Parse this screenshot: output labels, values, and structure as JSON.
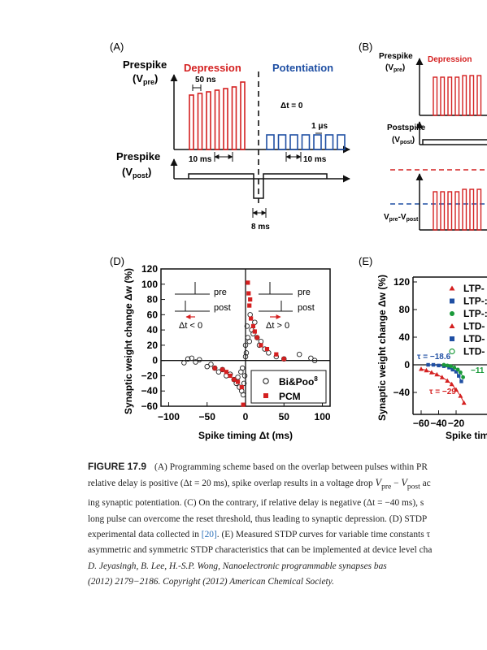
{
  "panels": {
    "A": {
      "label": "(A)",
      "pre_title_1": "Prespike",
      "pre_title_2": "(V",
      "pre_sub": "pre",
      "depression": "Depression",
      "potentiation": "Potentiation",
      "t_50ns": "50 ns",
      "dt_zero": "Δt = 0",
      "t_1us": "1 μs",
      "t_10ms_left": "10 ms",
      "t_10ms_right": "10 ms",
      "post_title_1": "Prespike",
      "post_title_2": "(V",
      "post_sub": "post",
      "t_8ms": "8 ms"
    },
    "B": {
      "label": "(B)",
      "prespike": "Prespike",
      "pre_paren": "(V",
      "pre_sub": "pre",
      "depression": "Depression",
      "postspike": "Postspike",
      "post_paren": "(V",
      "post_sub": "post",
      "vdiff_a": "V",
      "vdiff_sub_a": "pre",
      "vdiff_b": "-V",
      "vdiff_sub_b": "post"
    },
    "D": {
      "label": "(D)",
      "ylabel": "Synaptic weight change Δw (%)",
      "xlabel": "Spike timing Δt (ms)",
      "inset_pre_left": "pre",
      "inset_post_left": "post",
      "inset_dt_left": "Δt < 0",
      "inset_pre_right": "pre",
      "inset_post_right": "post",
      "inset_dt_right": "Δt > 0",
      "legend_bipoo": "Bi&Poo",
      "legend_bipoo_sup": "8",
      "legend_pcm": "PCM"
    },
    "E": {
      "label": "(E)",
      "ylabel": "Synaptic weight change Δw (%)",
      "xlabel": "Spike tim",
      "tau_blue": "τ = −18.6",
      "tau_green": "−11",
      "tau_red": "τ = −29",
      "legend": [
        "LTP-",
        "LTP-:",
        "LTP-:",
        "LTD-",
        "LTD-",
        "LTD-"
      ]
    }
  },
  "chart_data": [
    {
      "type": "scatter",
      "panel": "D",
      "xlabel": "Spike timing Δt (ms)",
      "ylabel": "Synaptic weight change Δw (%)",
      "xlim": [
        -110,
        110
      ],
      "ylim": [
        -60,
        120
      ],
      "xticks": [
        -100,
        -50,
        0,
        50,
        100
      ],
      "yticks": [
        -60,
        -40,
        -20,
        0,
        20,
        40,
        60,
        80,
        100,
        120
      ],
      "legend_position": "bottom-right",
      "series": [
        {
          "name": "Bi&Poo8",
          "marker": "open-circle",
          "points": [
            [
              -75,
              2
            ],
            [
              -70,
              3
            ],
            [
              -65,
              -2
            ],
            [
              -60,
              1
            ],
            [
              -80,
              -3
            ],
            [
              -50,
              -8
            ],
            [
              -45,
              -5
            ],
            [
              -40,
              -10
            ],
            [
              -35,
              -15
            ],
            [
              -30,
              -12
            ],
            [
              -25,
              -20
            ],
            [
              -20,
              -18
            ],
            [
              -15,
              -25
            ],
            [
              -12,
              -30
            ],
            [
              -10,
              -22
            ],
            [
              -8,
              -35
            ],
            [
              -6,
              -15
            ],
            [
              -5,
              -40
            ],
            [
              -4,
              -10
            ],
            [
              -3,
              -45
            ],
            [
              -2,
              -30
            ],
            [
              -1,
              -20
            ],
            [
              0,
              20
            ],
            [
              0,
              5
            ],
            [
              1,
              10
            ],
            [
              2,
              45
            ],
            [
              3,
              30
            ],
            [
              5,
              25
            ],
            [
              6,
              60
            ],
            [
              8,
              40
            ],
            [
              10,
              35
            ],
            [
              12,
              50
            ],
            [
              15,
              30
            ],
            [
              18,
              20
            ],
            [
              20,
              25
            ],
            [
              25,
              15
            ],
            [
              30,
              10
            ],
            [
              40,
              5
            ],
            [
              50,
              2
            ],
            [
              70,
              8
            ],
            [
              85,
              3
            ],
            [
              90,
              0
            ]
          ]
        },
        {
          "name": "PCM",
          "marker": "filled-square",
          "points": [
            [
              -40,
              -10
            ],
            [
              -30,
              -12
            ],
            [
              -25,
              -15
            ],
            [
              -20,
              -20
            ],
            [
              -15,
              -25
            ],
            [
              -10,
              -28
            ],
            [
              -5,
              -35
            ],
            [
              -3,
              -58
            ],
            [
              3,
              102
            ],
            [
              4,
              88
            ],
            [
              5,
              72
            ],
            [
              6,
              80
            ],
            [
              7,
              55
            ],
            [
              10,
              45
            ],
            [
              12,
              38
            ],
            [
              15,
              30
            ],
            [
              20,
              20
            ],
            [
              28,
              15
            ],
            [
              40,
              8
            ],
            [
              50,
              2
            ]
          ]
        }
      ]
    },
    {
      "type": "scatter",
      "panel": "E",
      "xlabel": "Spike tim",
      "ylabel": "Synaptic weight change Δw (%)",
      "xlim": [
        -70,
        -10
      ],
      "ylim": [
        -60,
        130
      ],
      "xticks": [
        -60,
        -40,
        -20
      ],
      "yticks": [
        -40,
        0,
        40,
        80,
        120
      ],
      "series": [
        {
          "name": "τ = −18.6",
          "color": "#1f4fa3",
          "marker": "filled-square",
          "points": [
            [
              -52,
              0
            ],
            [
              -46,
              0
            ],
            [
              -40,
              -1
            ],
            [
              -34,
              -2
            ],
            [
              -28,
              -4
            ],
            [
              -24,
              -7
            ],
            [
              -20,
              -10
            ],
            [
              -17,
              -16
            ],
            [
              -14,
              -24
            ]
          ]
        },
        {
          "name": "−11",
          "color": "#1a9a3a",
          "marker": "filled-circle",
          "points": [
            [
              -34,
              0
            ],
            [
              -30,
              -1
            ],
            [
              -26,
              -2
            ],
            [
              -22,
              -4
            ],
            [
              -18,
              -7
            ],
            [
              -15,
              -11
            ],
            [
              -12,
              -18
            ]
          ]
        },
        {
          "name": "τ = −29",
          "color": "#d42020",
          "marker": "filled-triangle",
          "points": [
            [
              -60,
              -6
            ],
            [
              -54,
              -8
            ],
            [
              -48,
              -11
            ],
            [
              -42,
              -14
            ],
            [
              -36,
              -18
            ],
            [
              -30,
              -23
            ],
            [
              -25,
              -28
            ],
            [
              -20,
              -36
            ],
            [
              -15,
              -45
            ],
            [
              -11,
              -55
            ]
          ]
        }
      ]
    }
  ],
  "caption": {
    "label": "FIGURE 17.9",
    "l1": "(A) Programming scheme based on the overlap between pulses within PR",
    "l2a": "relative delay is positive (",
    "l2b": "Δt = 20 ms), spike overlap results in a voltage drop ",
    "l2c": "V",
    "l2d": "pre",
    "l2e": " − ",
    "l2f": "V",
    "l2g": "post",
    "l2h": " ac",
    "l3": "ing synaptic potentiation. (C) On the contrary, if relative delay is negative (Δt = −40 ms), s",
    "l4": "long pulse can overcome the reset threshold, thus leading to synaptic depression. (D) STDP",
    "l5a": "experimental data collected in ",
    "l5ref": "[20]",
    "l5b": ". (E) Measured STDP curves for variable time constants τ",
    "l6": "asymmetric and symmetric STDP characteristics that can be implemented at device level cha",
    "l7": "D. Jeyasingh, B. Lee, H.-S.P. Wong, Nanoelectronic programmable synapses bas",
    "l8": "(2012) 2179−2186. Copyright (2012) American Chemical Society."
  },
  "colors": {
    "depression": "#d42020",
    "potentiation": "#1f4fa3",
    "green": "#1a9a3a",
    "pcm": "#d42020",
    "axis": "#111111"
  }
}
